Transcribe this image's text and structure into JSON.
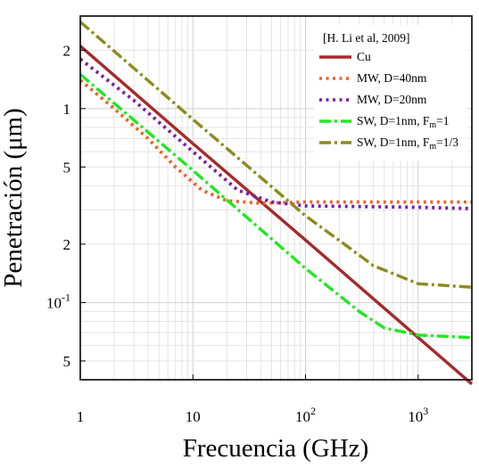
{
  "chart_data": {
    "type": "line",
    "xlabel": "Frecuencia (GHz)",
    "ylabel": "Penetración (μm)",
    "xscale": "log",
    "yscale": "log",
    "xlim": [
      1,
      3000
    ],
    "ylim": [
      0.04,
      3.0
    ],
    "grid": true,
    "legend_position": "top-right",
    "legend_title": "[H. Li et al, 2009]",
    "x_ticks": [
      {
        "value": 1,
        "base": "1",
        "exp": ""
      },
      {
        "value": 10,
        "base": "10",
        "exp": ""
      },
      {
        "value": 100,
        "base": "10",
        "exp": "2"
      },
      {
        "value": 1000,
        "base": "10",
        "exp": "3"
      }
    ],
    "y_ticks": [
      {
        "value": 2,
        "base": "2",
        "exp": ""
      },
      {
        "value": 1,
        "base": "1",
        "exp": ""
      },
      {
        "value": 0.5,
        "base": "5",
        "exp": ""
      },
      {
        "value": 0.2,
        "base": "2",
        "exp": ""
      },
      {
        "value": 0.1,
        "base": "10",
        "exp": "-1"
      },
      {
        "value": 0.05,
        "base": "5",
        "exp": ""
      }
    ],
    "series": [
      {
        "name": "Cu",
        "name_base": "Cu",
        "name_sub": "",
        "name_after": "",
        "color": "#a52a2a",
        "dash": "solid",
        "points": [
          [
            1,
            2.1
          ],
          [
            10,
            0.66
          ],
          [
            100,
            0.21
          ],
          [
            1000,
            0.066
          ],
          [
            3000,
            0.038
          ]
        ]
      },
      {
        "name": "MW, D=40nm",
        "name_base": "MW, D=40nm",
        "name_sub": "",
        "name_after": "",
        "color": "#e8642a",
        "dash": "dot",
        "points": [
          [
            1,
            1.4
          ],
          [
            2,
            1.0
          ],
          [
            4,
            0.7
          ],
          [
            7,
            0.5
          ],
          [
            12,
            0.38
          ],
          [
            20,
            0.335
          ],
          [
            40,
            0.325
          ],
          [
            100,
            0.33
          ],
          [
            1000,
            0.33
          ],
          [
            3000,
            0.33
          ]
        ]
      },
      {
        "name": "MW, D=20nm",
        "name_base": "MW, D=20nm",
        "name_sub": "",
        "name_after": "",
        "color": "#7b1fa2",
        "dash": "dot",
        "points": [
          [
            1,
            1.8
          ],
          [
            3,
            1.1
          ],
          [
            10,
            0.6
          ],
          [
            25,
            0.38
          ],
          [
            50,
            0.33
          ],
          [
            100,
            0.315
          ],
          [
            1000,
            0.31
          ],
          [
            3000,
            0.305
          ]
        ]
      },
      {
        "name": "SW, D=1nm, Fm=1",
        "name_base": "SW, D=1nm, F",
        "name_sub": "m",
        "name_after": "=1",
        "color": "#22e622",
        "dash": "dashdot",
        "points": [
          [
            1,
            1.5
          ],
          [
            10,
            0.48
          ],
          [
            100,
            0.15
          ],
          [
            300,
            0.09
          ],
          [
            500,
            0.074
          ],
          [
            1000,
            0.068
          ],
          [
            3000,
            0.066
          ]
        ]
      },
      {
        "name": "SW, D=1nm, Fm=1/3",
        "name_base": "SW, D=1nm, F",
        "name_sub": "m",
        "name_after": "=1/3",
        "color": "#8b8b1e",
        "dash": "dashdot",
        "points": [
          [
            1,
            2.8
          ],
          [
            10,
            0.88
          ],
          [
            100,
            0.28
          ],
          [
            250,
            0.19
          ],
          [
            400,
            0.155
          ],
          [
            1000,
            0.125
          ],
          [
            3000,
            0.12
          ]
        ]
      }
    ]
  }
}
